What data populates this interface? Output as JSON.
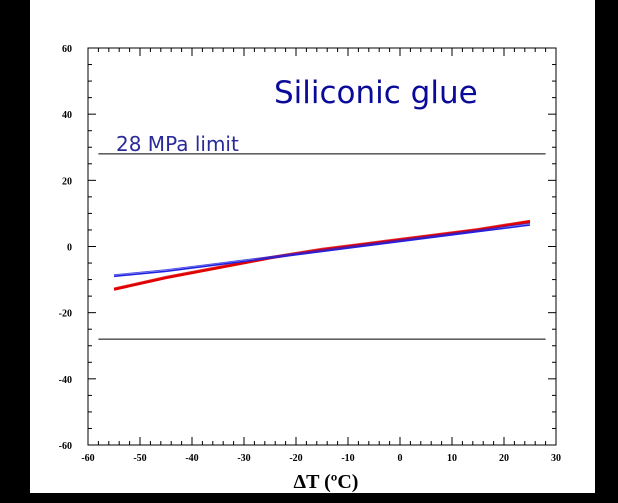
{
  "chart_data": {
    "type": "line",
    "title": "Siliconic glue",
    "xlabel": "ΔT (ºC)",
    "ylabel": "",
    "xlim": [
      -60,
      30
    ],
    "ylim": [
      -60,
      60
    ],
    "xticks": [
      -60,
      -50,
      -40,
      -30,
      -20,
      -10,
      0,
      10,
      20,
      30
    ],
    "yticks": [
      60,
      40,
      20,
      0,
      -20,
      -40,
      -60
    ],
    "grid": false,
    "reference_lines": [
      {
        "y": 28
      },
      {
        "y": -28
      }
    ],
    "annotations": [
      {
        "text": "28 MPa limit"
      }
    ],
    "series": [
      {
        "color": "#e00000",
        "x": [
          -55,
          -45,
          -35,
          -25,
          -15,
          -5,
          5,
          15,
          25
        ],
        "y": [
          -13,
          -9.5,
          -6.5,
          -3.5,
          -1,
          1,
          3,
          5,
          7.5
        ]
      },
      {
        "color": "#2020e0",
        "x": [
          -55,
          -45,
          -35,
          -25,
          -15,
          -5,
          5,
          15,
          25
        ],
        "y": [
          -9,
          -7.5,
          -5.5,
          -3.5,
          -1.5,
          0.5,
          2.5,
          4.5,
          6.5
        ]
      }
    ]
  }
}
